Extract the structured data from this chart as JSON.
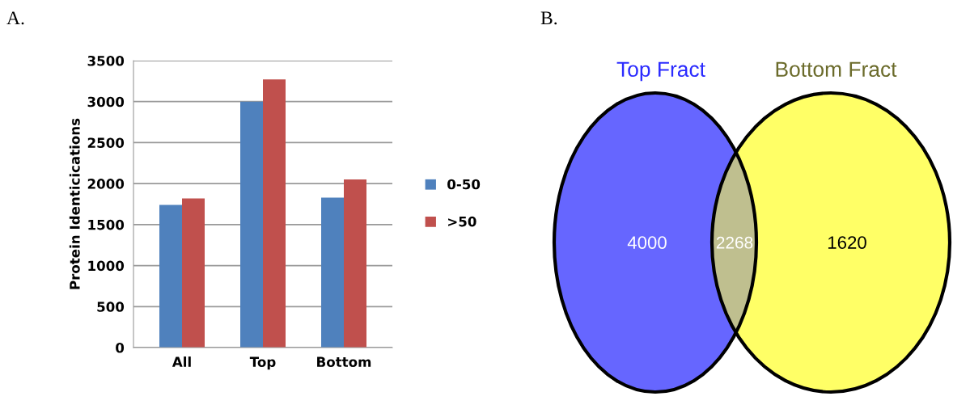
{
  "chart_data": [
    {
      "type": "bar",
      "title": "A.",
      "ylabel": "Protein Identicications",
      "categories": [
        "All",
        "Top",
        "Bottom"
      ],
      "series": [
        {
          "name": "0-50",
          "color": "#4f81bd",
          "values": [
            1740,
            3000,
            1830
          ]
        },
        {
          "name": ">50",
          "color": "#c0504d",
          "values": [
            1820,
            3270,
            2050
          ]
        }
      ],
      "ylim": [
        0,
        3500
      ],
      "yticks": [
        0,
        500,
        1000,
        1500,
        2000,
        2500,
        3000,
        3500
      ],
      "grid": "y",
      "legend": "right"
    },
    {
      "type": "other",
      "title": "B.",
      "categories": [
        "Top Fract",
        null,
        "Bottom Fract"
      ],
      "values": [
        4000,
        2268,
        1620
      ],
      "colors": [
        "#6666ff",
        "#bfbf8f",
        "#ffff66"
      ],
      "data_labels": true
    }
  ]
}
